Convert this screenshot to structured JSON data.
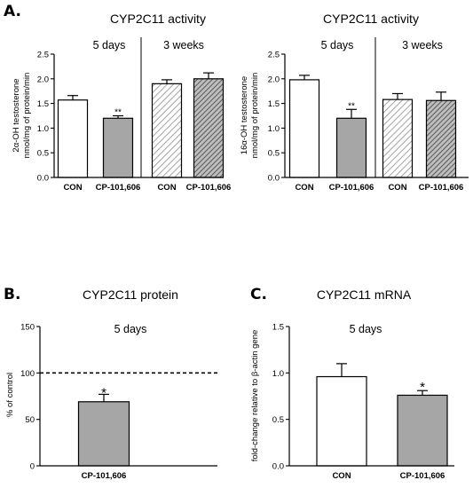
{
  "panels": [
    {
      "letter": "A."
    },
    {
      "letter": ""
    },
    {
      "letter": "B."
    },
    {
      "letter": "C."
    }
  ],
  "colors": {
    "white_bar": "#ffffff",
    "gray_bar": "#a6a6a6",
    "light_hatch": "#8c8c8c",
    "dark_hatch": "#4d4d4d",
    "axis": "#000000"
  },
  "chart_data": [
    {
      "type": "bar",
      "title": "CYP2C11 activity",
      "ylabel_lines": [
        "2α-OH testosterone",
        "nmol/mg of protein/min"
      ],
      "ylim": [
        0,
        2.5
      ],
      "yticks": [
        "0.0",
        "0.5",
        "1.0",
        "1.5",
        "2.0",
        "2.5"
      ],
      "groups": [
        "5 days",
        "3 weeks"
      ],
      "categories": [
        "CON",
        "CP-101,606",
        "CON",
        "CP-101,606"
      ],
      "values": [
        1.57,
        1.2,
        1.9,
        2.0
      ],
      "errors": [
        0.09,
        0.05,
        0.08,
        0.12
      ],
      "fills": [
        "white",
        "gray",
        "hatch-light",
        "hatch-dark"
      ],
      "significance": [
        "",
        "**",
        "",
        ""
      ],
      "divider_after": 2
    },
    {
      "type": "bar",
      "title": "CYP2C11 activity",
      "ylabel_lines": [
        "16α-OH testosterone",
        "nmol/mg of protein/min"
      ],
      "ylim": [
        0,
        2.5
      ],
      "yticks": [
        "0.0",
        "0.5",
        "1.0",
        "1.5",
        "2.0",
        "2.5"
      ],
      "groups": [
        "5 days",
        "3 weeks"
      ],
      "categories": [
        "CON",
        "CP-101,606",
        "CON",
        "CP-101,606"
      ],
      "values": [
        1.98,
        1.2,
        1.58,
        1.56
      ],
      "errors": [
        0.09,
        0.18,
        0.12,
        0.17
      ],
      "fills": [
        "white",
        "gray",
        "hatch-light",
        "hatch-dark"
      ],
      "significance": [
        "",
        "**",
        "",
        ""
      ],
      "divider_after": 2
    },
    {
      "type": "bar",
      "title": "CYP2C11 protein",
      "ylabel_lines": [
        "% of control"
      ],
      "ylim": [
        0,
        150
      ],
      "yticks": [
        "0",
        "50",
        "100",
        "150"
      ],
      "groups": [
        "5 days"
      ],
      "categories": [
        "CP-101,606"
      ],
      "values": [
        69
      ],
      "errors": [
        8
      ],
      "fills": [
        "gray"
      ],
      "significance": [
        "*"
      ],
      "reference_line": 100
    },
    {
      "type": "bar",
      "title": "CYP2C11 mRNA",
      "ylabel_lines": [
        "fold-change relative to β-actin gene"
      ],
      "ylim": [
        0,
        1.5
      ],
      "yticks": [
        "0.0",
        "0.5",
        "1.0",
        "1.5"
      ],
      "groups": [
        "5 days"
      ],
      "categories": [
        "CON",
        "CP-101,606"
      ],
      "values": [
        0.96,
        0.76
      ],
      "errors": [
        0.14,
        0.05
      ],
      "fills": [
        "white",
        "gray"
      ],
      "significance": [
        "",
        "*"
      ]
    }
  ]
}
